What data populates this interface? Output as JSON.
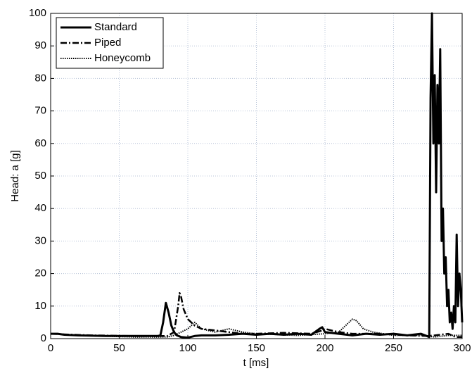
{
  "chart_data": {
    "type": "line",
    "xlabel": "t [ms]",
    "ylabel": "Head: a [g]",
    "xlim": [
      0,
      300
    ],
    "xticks": [
      0,
      50,
      100,
      150,
      200,
      250,
      300
    ],
    "ylim": [
      0,
      100
    ],
    "yticks": [
      0,
      10,
      20,
      30,
      40,
      50,
      60,
      70,
      80,
      90,
      100
    ],
    "grid": true,
    "legend": "upper-left",
    "series": [
      {
        "name": "Standard",
        "color": "#000000",
        "dash": "solid",
        "x": [
          0,
          5,
          10,
          20,
          40,
          60,
          78,
          80,
          82,
          84,
          86,
          88,
          90,
          92,
          95,
          100,
          105,
          110,
          120,
          130,
          140,
          150,
          160,
          170,
          180,
          190,
          196,
          198,
          200,
          210,
          220,
          230,
          240,
          250,
          260,
          270,
          276,
          277,
          278,
          279,
          280,
          281,
          282,
          283,
          284,
          285,
          286,
          287,
          288,
          289,
          290,
          291,
          292,
          293,
          294,
          295,
          296,
          297,
          298,
          299,
          300
        ],
        "values": [
          1.5,
          1.5,
          1.2,
          1,
          0.8,
          0.8,
          0.8,
          1,
          5,
          11,
          8,
          4,
          2,
          1,
          0.5,
          0.3,
          0.8,
          1,
          1,
          1.2,
          1.5,
          1.2,
          1.5,
          1.2,
          1.5,
          1.2,
          3,
          3.5,
          2,
          1.5,
          1,
          1.5,
          1.2,
          1.5,
          1,
          1.5,
          0.5,
          74,
          100,
          60,
          81,
          45,
          78,
          60,
          89,
          30,
          40,
          20,
          25,
          10,
          15,
          5,
          8,
          3,
          10,
          5,
          32,
          10,
          20,
          15,
          5
        ]
      },
      {
        "name": "Piped",
        "color": "#000000",
        "dash": "dashdot",
        "x": [
          0,
          10,
          30,
          60,
          85,
          90,
          93,
          94,
          95,
          97,
          100,
          105,
          110,
          120,
          130,
          140,
          150,
          170,
          190,
          198,
          200,
          210,
          220,
          240,
          260,
          275,
          280,
          290,
          295,
          300
        ],
        "values": [
          1.5,
          1.3,
          1,
          0.8,
          0.8,
          2,
          10,
          14,
          13,
          9,
          6,
          4,
          3,
          2.5,
          2,
          1.5,
          1.5,
          1.8,
          1.5,
          2.5,
          3,
          2,
          1.5,
          1.5,
          1,
          0.8,
          1,
          1.5,
          0.5,
          0.5
        ]
      },
      {
        "name": "Honeycomb",
        "color": "#000000",
        "dash": "dotted",
        "x": [
          0,
          20,
          60,
          85,
          90,
          95,
          100,
          105,
          110,
          120,
          130,
          140,
          150,
          180,
          200,
          210,
          215,
          220,
          223,
          228,
          235,
          250,
          270,
          280,
          290,
          300
        ],
        "values": [
          1.5,
          1,
          0.5,
          0.5,
          1,
          2,
          3,
          5,
          3,
          2,
          3,
          2,
          1.5,
          1,
          1.5,
          2,
          4,
          6,
          5.5,
          3,
          2,
          1,
          1,
          0.5,
          1,
          1
        ]
      }
    ]
  }
}
